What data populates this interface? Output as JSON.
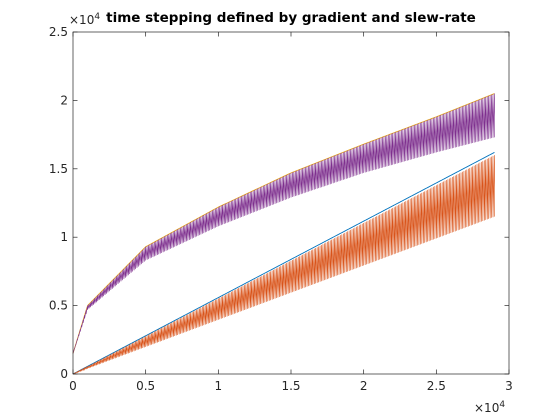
{
  "chart_data": {
    "type": "line",
    "title": "time stepping defined by gradient and slew-rate",
    "xlabel": "",
    "ylabel": "",
    "xlim": [
      0,
      30000
    ],
    "ylim": [
      0,
      25000
    ],
    "x_multiplier": "10^4",
    "y_multiplier": "10^4",
    "x_ticks": [
      0,
      0.5,
      1,
      1.5,
      2,
      2.5,
      3
    ],
    "y_ticks": [
      0,
      0.5,
      1,
      1.5,
      2,
      2.5
    ],
    "grid": false,
    "legend": false,
    "series": [
      {
        "color": "#0072BD",
        "shape": "linear",
        "x": [
          0,
          29000
        ],
        "y": [
          0,
          16200
        ]
      },
      {
        "color": "#D95319",
        "shape": "linear-sawtooth",
        "x": [
          0,
          29000
        ],
        "y_upper": [
          0,
          16000
        ],
        "y_lower": [
          0,
          11500
        ]
      },
      {
        "color": "#EDB120",
        "shape": "sqrt",
        "x": [
          0,
          1000,
          5000,
          10000,
          15000,
          20000,
          25000,
          29000
        ],
        "y": [
          1500,
          5000,
          9300,
          12200,
          14700,
          16800,
          18800,
          20500
        ]
      },
      {
        "color": "#7E2F8E",
        "shape": "sqrt-sawtooth",
        "x": [
          0,
          1000,
          5000,
          10000,
          15000,
          20000,
          25000,
          29000
        ],
        "y_upper": [
          1500,
          5000,
          9300,
          12200,
          14700,
          16800,
          18800,
          20500
        ],
        "y_lower": [
          1500,
          4700,
          8300,
          10800,
          12900,
          14700,
          16200,
          17300
        ]
      }
    ]
  }
}
